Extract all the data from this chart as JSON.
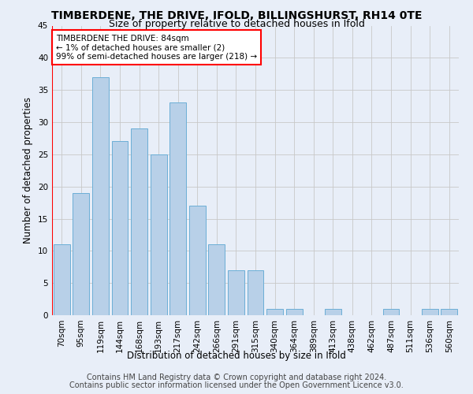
{
  "title": "TIMBERDENE, THE DRIVE, IFOLD, BILLINGSHURST, RH14 0TE",
  "subtitle": "Size of property relative to detached houses in Ifold",
  "xlabel": "Distribution of detached houses by size in Ifold",
  "ylabel": "Number of detached properties",
  "categories": [
    "70sqm",
    "95sqm",
    "119sqm",
    "144sqm",
    "168sqm",
    "193sqm",
    "217sqm",
    "242sqm",
    "266sqm",
    "291sqm",
    "315sqm",
    "340sqm",
    "364sqm",
    "389sqm",
    "413sqm",
    "438sqm",
    "462sqm",
    "487sqm",
    "511sqm",
    "536sqm",
    "560sqm"
  ],
  "values": [
    11,
    19,
    37,
    27,
    29,
    25,
    33,
    17,
    11,
    7,
    7,
    1,
    1,
    0,
    1,
    0,
    0,
    1,
    0,
    1,
    1
  ],
  "bar_color": "#b8d0e8",
  "bar_edge_color": "#6baed6",
  "annotation_line1": "TIMBERDENE THE DRIVE: 84sqm",
  "annotation_line2": "← 1% of detached houses are smaller (2)",
  "annotation_line3": "99% of semi-detached houses are larger (218) →",
  "vline_x_index": 0,
  "ylim": [
    0,
    45
  ],
  "yticks": [
    0,
    5,
    10,
    15,
    20,
    25,
    30,
    35,
    40,
    45
  ],
  "footer_line1": "Contains HM Land Registry data © Crown copyright and database right 2024.",
  "footer_line2": "Contains public sector information licensed under the Open Government Licence v3.0.",
  "background_color": "#e8eef8",
  "plot_bg_color": "#e8eef8",
  "grid_color": "#c8c8c8",
  "title_fontsize": 10,
  "subtitle_fontsize": 9,
  "axis_label_fontsize": 8.5,
  "tick_fontsize": 7.5,
  "annotation_fontsize": 7.5,
  "footer_fontsize": 7
}
